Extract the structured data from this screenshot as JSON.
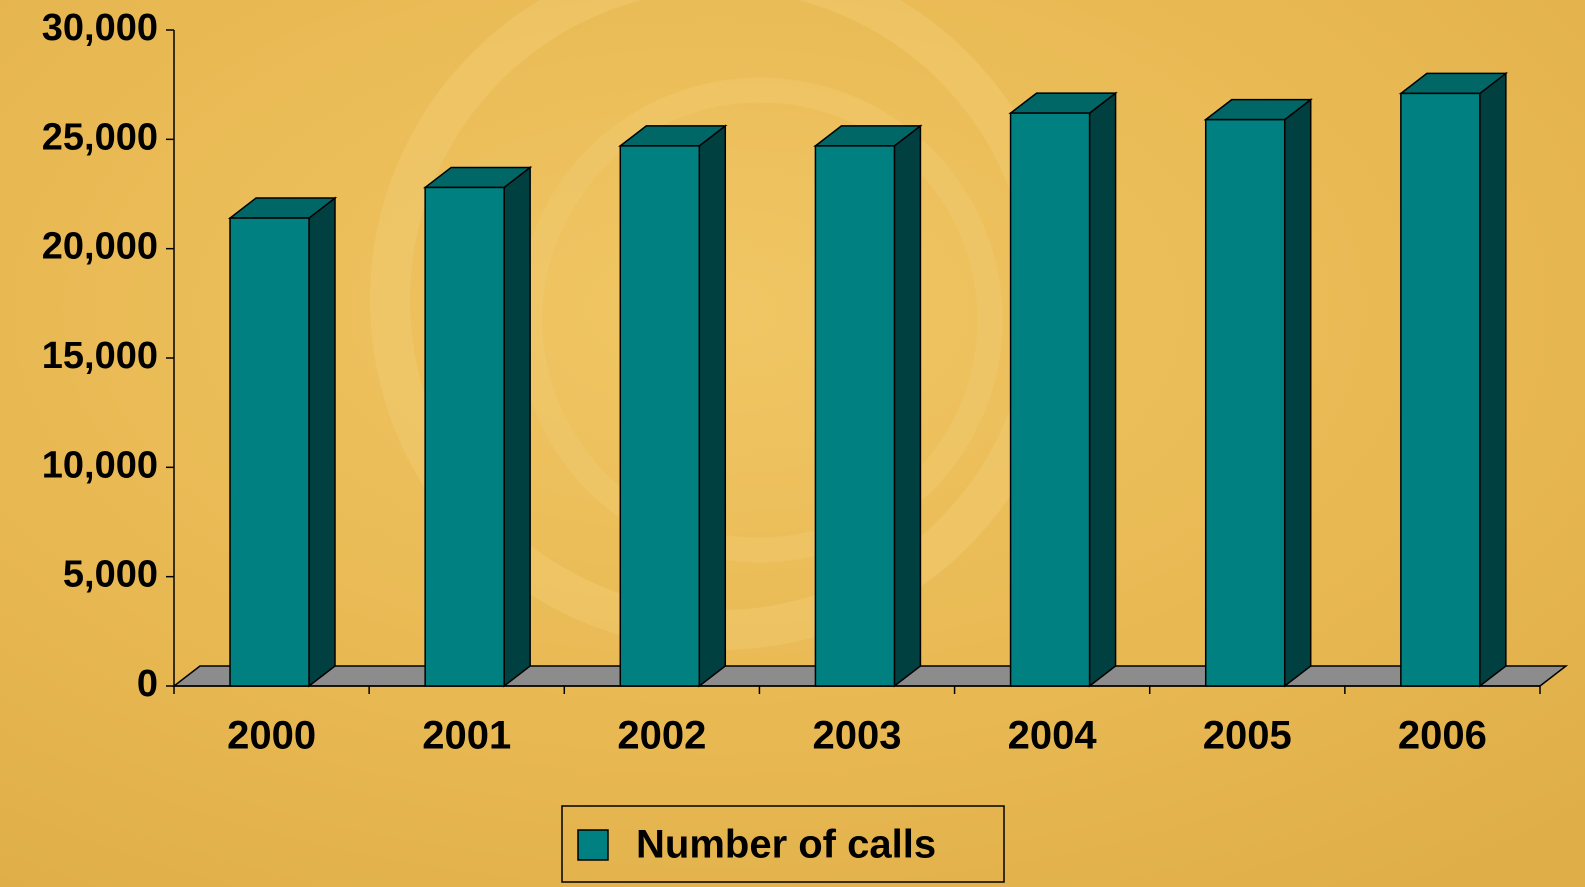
{
  "chart_data": {
    "type": "bar3d",
    "categories": [
      "2000",
      "2001",
      "2002",
      "2003",
      "2004",
      "2005",
      "2006"
    ],
    "series": [
      {
        "name": "Number of calls",
        "color": "#008080",
        "values": [
          21400,
          22800,
          24700,
          24700,
          26200,
          25900,
          27100
        ]
      }
    ],
    "ylim": [
      0,
      30000
    ],
    "yticks": [
      0,
      {
        "value": 5000,
        "label": "5,000"
      },
      {
        "value": 10000,
        "label": "10,000"
      },
      {
        "value": 15000,
        "label": "15,000"
      },
      {
        "value": 20000,
        "label": "20,000"
      },
      {
        "value": 25000,
        "label": "25,000"
      },
      {
        "value": 30000,
        "label": "30,000"
      }
    ],
    "legend": "bottom"
  }
}
